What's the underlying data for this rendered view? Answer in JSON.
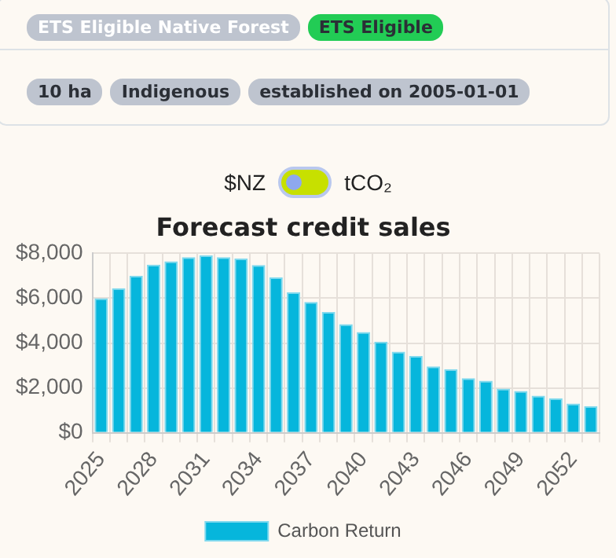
{
  "chart_data": {
    "type": "bar",
    "title": "Forecast credit sales",
    "annotations": [
      "ETS Eligible Native Forest",
      "ETS Eligible",
      "10 ha",
      "Indigenous",
      "established on 2005-01-01",
      "$NZ",
      "tCO₂"
    ],
    "categories": [
      "2025",
      null,
      null,
      "2028",
      null,
      null,
      "2031",
      null,
      null,
      "2034",
      null,
      null,
      "2037",
      null,
      null,
      "2040",
      null,
      null,
      "2043",
      null,
      null,
      "2046",
      null,
      null,
      "2049",
      null,
      null,
      "2052",
      null
    ],
    "series": [
      {
        "name": "Carbon Return",
        "color": "#06b6dc",
        "values": [
          6000,
          6450,
          7000,
          7500,
          7650,
          7830,
          7910,
          7830,
          7770,
          7480,
          6930,
          6260,
          5830,
          5390,
          4840,
          4490,
          4060,
          3620,
          3420,
          2960,
          2840,
          2430,
          2320,
          1970,
          1860,
          1650,
          1540,
          1300,
          1190
        ]
      }
    ],
    "ylim": [
      0,
      8000
    ],
    "yticks": [
      {
        "value": 0,
        "label": "$0"
      },
      {
        "value": 2000,
        "label": "$2,000"
      },
      {
        "value": 4000,
        "label": "$4,000"
      },
      {
        "value": 6000,
        "label": "$6,000"
      },
      {
        "value": 8000,
        "label": "$8,000"
      }
    ],
    "grid": true,
    "legend": "bottom"
  }
}
